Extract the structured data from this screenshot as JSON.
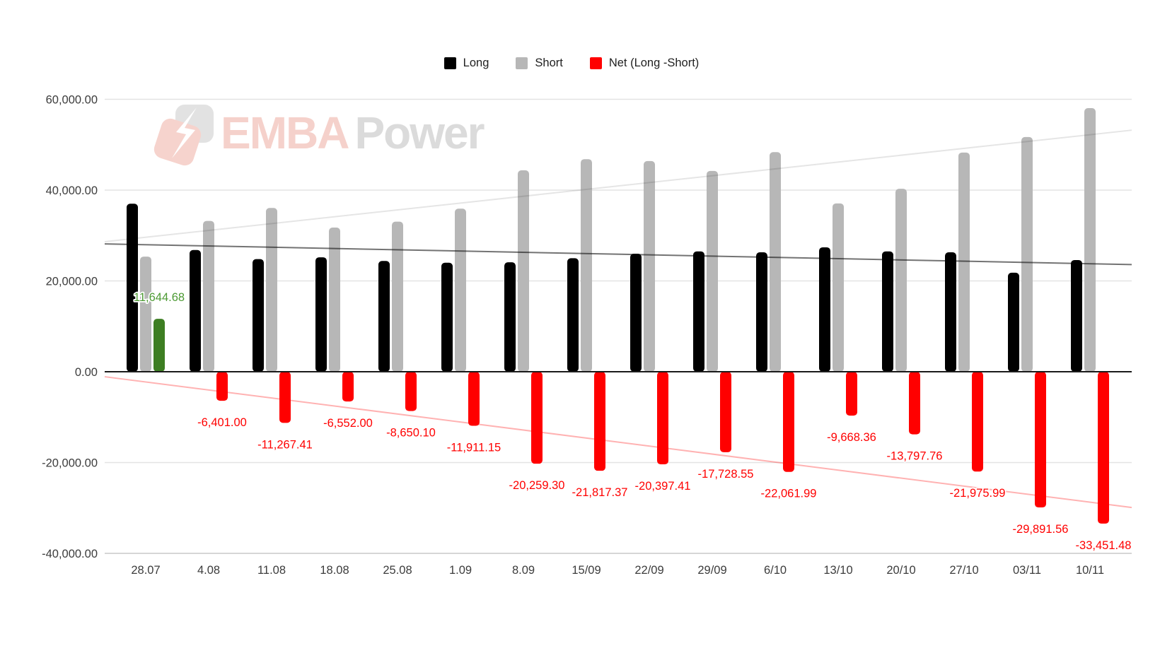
{
  "watermark": {
    "brand_first": "EMBA",
    "brand_second": "Power"
  },
  "chart_data": {
    "type": "bar",
    "categories": [
      "28.07",
      "4.08",
      "11.08",
      "18.08",
      "25.08",
      "1.09",
      "8.09",
      "15/09",
      "22/09",
      "29/09",
      "6/10",
      "13/10",
      "20/10",
      "27/10",
      "03/11",
      "10/11"
    ],
    "series": [
      {
        "name": "Long",
        "color": "#000000",
        "values": [
          37000,
          26800,
          24800,
          25200,
          24400,
          24000,
          24100,
          25000,
          26000,
          26500,
          26300,
          27400,
          26500,
          26300,
          21800,
          24600
        ]
      },
      {
        "name": "Short",
        "color": "#b7b7b7",
        "values": [
          25355.32,
          33201.0,
          36067.41,
          31752.0,
          33050.1,
          35911.15,
          44359.3,
          46817.37,
          46397.41,
          44228.55,
          48361.99,
          37068.36,
          40297.76,
          48275.99,
          51691.56,
          58051.48
        ]
      },
      {
        "name": "Net (Long -Short)",
        "color": "#ff0000",
        "positive_color": "#3d7e22",
        "positive_label_color": "#4c9a33",
        "values": [
          11644.68,
          -6401.0,
          -11267.41,
          -6552.0,
          -8650.1,
          -11911.15,
          -20259.3,
          -21817.37,
          -20397.41,
          -17728.55,
          -22061.99,
          -9668.36,
          -13797.76,
          -21975.99,
          -29891.56,
          -33451.48
        ]
      }
    ],
    "net_value_labels": [
      "11,644.68",
      "-6,401.00",
      "-11,267.41",
      "-6,552.00",
      "-8,650.10",
      "-11,911.15",
      "-20,259.30",
      "-21,817.37",
      "-20,397.41",
      "-17,728.55",
      "-22,061.99",
      "-9,668.36",
      "-13,797.76",
      "-21,975.99",
      "-29,891.56",
      "-33,451.48"
    ],
    "y_ticks": [
      {
        "value": 60000,
        "label": "60,000.00"
      },
      {
        "value": 40000,
        "label": "40,000.00"
      },
      {
        "value": 20000,
        "label": "20,000.00"
      },
      {
        "value": 0,
        "label": "0.00"
      },
      {
        "value": -20000,
        "label": "-20,000.00"
      },
      {
        "value": -40000,
        "label": "-40,000.00"
      }
    ],
    "ylim": [
      -40000,
      60000
    ],
    "grid": true,
    "legend_position": "top",
    "trend_lines": [
      {
        "series": "Short",
        "color": "rgba(0,0,0,0.10)",
        "left_value": 28630,
        "right_value": 53200
      },
      {
        "series": "Long",
        "color": "rgba(0,0,0,0.55)",
        "left_value": 28160,
        "right_value": 23600
      },
      {
        "series": "Net",
        "color": "rgba(255,0,0,0.30)",
        "left_value": -1100,
        "right_value": -29900
      }
    ]
  }
}
